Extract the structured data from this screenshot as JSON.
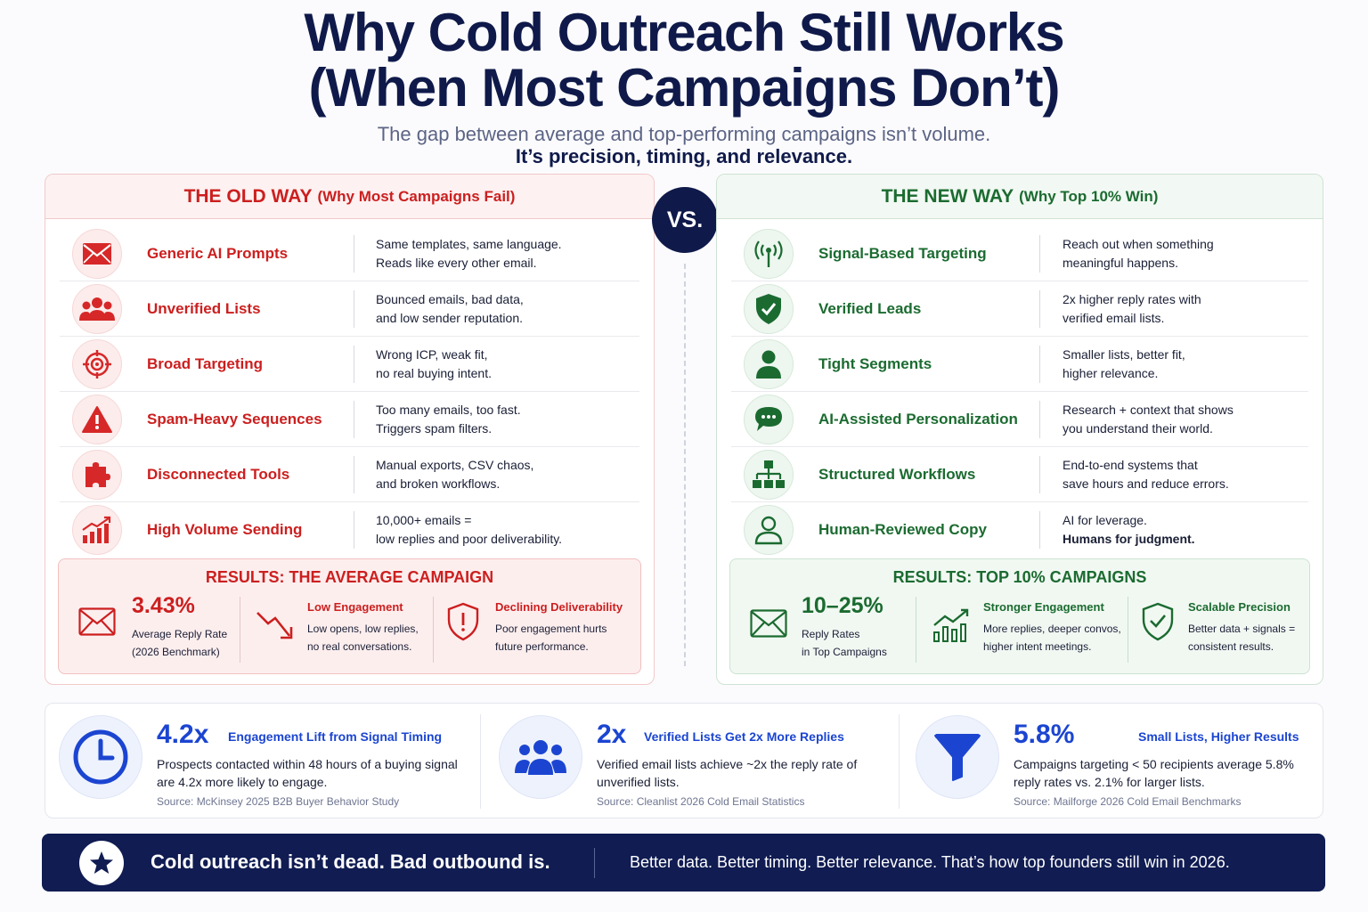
{
  "header": {
    "title_line1": "Why Cold Outreach Still Works",
    "title_line2": "(When Most Campaigns Don’t)",
    "subtitle": "The gap between average and top-performing campaigns isn’t volume.",
    "subtitle_bold": "It’s precision, timing, and relevance."
  },
  "vs": "VS.",
  "old_way": {
    "title": "THE OLD WAY",
    "title_suffix": "(Why Most Campaigns Fail)",
    "rows": [
      {
        "icon": "envelope-icon",
        "label": "Generic AI Prompts",
        "desc_line1": "Same templates, same language.",
        "desc_line2": "Reads like every other email."
      },
      {
        "icon": "group-icon",
        "label": "Unverified Lists",
        "desc_line1": "Bounced emails, bad data,",
        "desc_line2": "and low sender reputation."
      },
      {
        "icon": "target-icon",
        "label": "Broad Targeting",
        "desc_line1": "Wrong ICP, weak fit,",
        "desc_line2": "no real buying intent."
      },
      {
        "icon": "warning-icon",
        "label": "Spam-Heavy Sequences",
        "desc_line1": "Too many emails, too fast.",
        "desc_line2": "Triggers spam filters."
      },
      {
        "icon": "puzzle-icon",
        "label": "Disconnected Tools",
        "desc_line1": "Manual exports, CSV chaos,",
        "desc_line2": "and broken workflows."
      },
      {
        "icon": "bar-chart-icon",
        "label": "High Volume Sending",
        "desc_line1": "10,000+ emails =",
        "desc_line2": "low replies and poor deliverability."
      }
    ],
    "results": {
      "title": "RESULTS: THE AVERAGE CAMPAIGN",
      "metric_value": "3.43%",
      "metric_label1": "Average Reply Rate",
      "metric_label2": "(2026 Benchmark)",
      "item2_title": "Low Engagement",
      "item2_line1": "Low opens, low replies,",
      "item2_line2": "no real conversations.",
      "item3_title": "Declining Deliverability",
      "item3_line1": "Poor engagement hurts",
      "item3_line2": "future performance."
    }
  },
  "new_way": {
    "title": "THE NEW WAY",
    "title_suffix": "(Why Top 10% Win)",
    "rows": [
      {
        "icon": "signal-icon",
        "label": "Signal-Based Targeting",
        "desc_line1": "Reach out when something",
        "desc_line2": "meaningful happens."
      },
      {
        "icon": "shield-check-icon",
        "label": "Verified Leads",
        "desc_line1": "2x higher reply rates with",
        "desc_line2": "verified email lists."
      },
      {
        "icon": "person-icon",
        "label": "Tight Segments",
        "desc_line1": "Smaller lists, better fit,",
        "desc_line2": "higher relevance."
      },
      {
        "icon": "chat-icon",
        "label": "AI-Assisted Personalization",
        "desc_line1": "Research + context that shows",
        "desc_line2": "you understand their world."
      },
      {
        "icon": "org-chart-icon",
        "label": "Structured Workflows",
        "desc_line1": "End-to-end systems that",
        "desc_line2": "save hours and reduce errors."
      },
      {
        "icon": "user-outline-icon",
        "label": "Human-Reviewed Copy",
        "desc_line1": "AI for leverage.",
        "desc_line2": "Humans for judgment."
      }
    ],
    "results": {
      "title": "RESULTS: TOP 10% CAMPAIGNS",
      "metric_value": "10–25%",
      "metric_label1": "Reply Rates",
      "metric_label2": "in Top Campaigns",
      "item2_title": "Stronger Engagement",
      "item2_line1": "More replies, deeper convos,",
      "item2_line2": "higher intent meetings.",
      "item3_title": "Scalable Precision",
      "item3_line1": "Better data + signals =",
      "item3_line2": "consistent results."
    }
  },
  "stats": [
    {
      "icon": "clock-icon",
      "value": "4.2x",
      "title": "Engagement Lift from Signal Timing",
      "body": "Prospects contacted within 48 hours of a buying signal are 4.2x more likely to engage.",
      "source": "Source: McKinsey 2025 B2B Buyer Behavior Study"
    },
    {
      "icon": "people-icon",
      "value": "2x",
      "title": "Verified Lists Get 2x More Replies",
      "body": "Verified email lists achieve ~2x the reply rate of unverified lists.",
      "source": "Source: Cleanlist 2026 Cold Email Statistics"
    },
    {
      "icon": "funnel-icon",
      "value": "5.8%",
      "title": "Small Lists, Higher Results",
      "body": "Campaigns targeting < 50 recipients average 5.8% reply rates vs. 2.1% for larger lists.",
      "source": "Source: Mailforge 2026 Cold Email Benchmarks"
    }
  ],
  "banner": {
    "icon": "star-icon",
    "headline": "Cold outreach isn’t dead. Bad outbound is.",
    "tagline": "Better data. Better timing. Better relevance. That’s how top founders still win in 2026."
  },
  "colors": {
    "navy": "#0f1a4a",
    "old_red": "#cc1f1f",
    "new_green": "#1b6b30",
    "stat_blue": "#1b45d1"
  }
}
